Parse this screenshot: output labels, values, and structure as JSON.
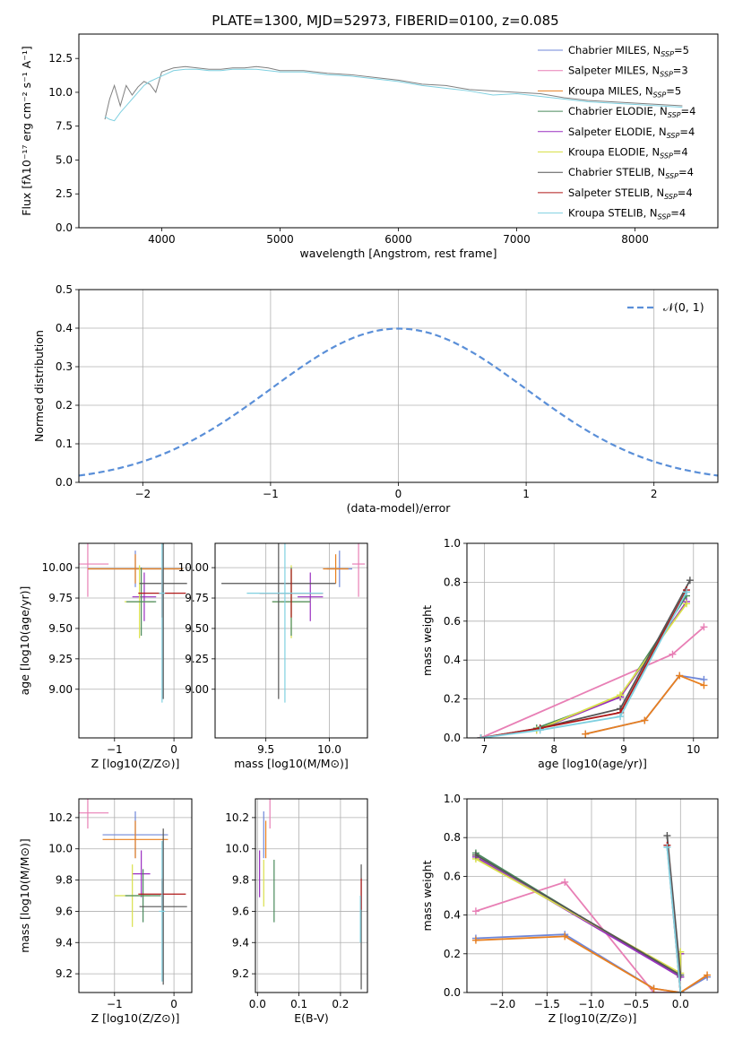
{
  "title": "PLATE=1300, MJD=52973, FIBERID=0100, z=0.085",
  "colors": {
    "Chabrier MILES": "#6f87d8",
    "Salpeter MILES": "#e87fb5",
    "Kroupa MILES": "#e87f1f",
    "Chabrier ELODIE": "#4a8a5c",
    "Salpeter ELODIE": "#9a2fc0",
    "Kroupa ELODIE": "#d8e04a",
    "Chabrier STELIB": "#555555",
    "Salpeter STELIB": "#b01818",
    "Kroupa STELIB": "#7fd0e0"
  },
  "chart_data": [
    {
      "id": "spectrum",
      "type": "line",
      "xlabel": "wavelength [Angstrom, rest frame]",
      "ylabel": "Flux [fλ10⁻¹⁷ erg cm⁻² s⁻¹ A⁻¹]",
      "xlim": [
        3300,
        8700
      ],
      "ylim": [
        0,
        14.3
      ],
      "xticks": [
        4000,
        5000,
        6000,
        7000,
        8000
      ],
      "yticks": [
        0.0,
        2.5,
        5.0,
        7.5,
        10.0,
        12.5
      ],
      "grid": false,
      "legend_position": "right",
      "legend": [
        {
          "name": "Chabrier MILES",
          "label": "Chabrier MILES, N",
          "sub": "SSP",
          "val": "=5"
        },
        {
          "name": "Salpeter MILES",
          "label": "Salpeter MILES, N",
          "sub": "SSP",
          "val": "=3"
        },
        {
          "name": "Kroupa MILES",
          "label": "Kroupa MILES, N",
          "sub": "SSP",
          "val": "=5"
        },
        {
          "name": "Chabrier ELODIE",
          "label": "Chabrier ELODIE, N",
          "sub": "SSP",
          "val": "=4"
        },
        {
          "name": "Salpeter ELODIE",
          "label": "Salpeter ELODIE, N",
          "sub": "SSP",
          "val": "=4"
        },
        {
          "name": "Kroupa ELODIE",
          "label": "Kroupa ELODIE, N",
          "sub": "SSP",
          "val": "=4"
        },
        {
          "name": "Chabrier STELIB",
          "label": "Chabrier STELIB, N",
          "sub": "SSP",
          "val": "=4"
        },
        {
          "name": "Salpeter STELIB",
          "label": "Salpeter STELIB, N",
          "sub": "SSP",
          "val": "=4"
        },
        {
          "name": "Kroupa STELIB",
          "label": "Kroupa STELIB, N",
          "sub": "SSP",
          "val": "=4"
        }
      ],
      "series": [
        {
          "name": "data",
          "color": "#808080",
          "x": [
            3520,
            3560,
            3600,
            3650,
            3700,
            3750,
            3800,
            3850,
            3900,
            3950,
            4000,
            4100,
            4200,
            4300,
            4400,
            4500,
            4600,
            4700,
            4800,
            4900,
            5000,
            5200,
            5400,
            5600,
            5800,
            6000,
            6200,
            6400,
            6600,
            6800,
            7000,
            7200,
            7400,
            7600,
            7800,
            8000,
            8200,
            8400
          ],
          "y": [
            8.0,
            9.5,
            10.5,
            9.0,
            10.5,
            9.8,
            10.4,
            10.8,
            10.6,
            10.0,
            11.5,
            11.8,
            11.9,
            11.8,
            11.7,
            11.7,
            11.8,
            11.8,
            11.9,
            11.8,
            11.6,
            11.6,
            11.4,
            11.3,
            11.1,
            10.9,
            10.6,
            10.5,
            10.2,
            10.1,
            10.0,
            9.9,
            9.6,
            9.4,
            9.3,
            9.2,
            9.1,
            9.0
          ]
        },
        {
          "name": "model",
          "color": "#7fd0e0",
          "x": [
            3520,
            3560,
            3600,
            3650,
            3700,
            3750,
            3800,
            3850,
            3900,
            3950,
            4000,
            4100,
            4200,
            4300,
            4400,
            4500,
            4600,
            4700,
            4800,
            4900,
            5000,
            5200,
            5400,
            5600,
            5800,
            6000,
            6200,
            6400,
            6600,
            6800,
            7000,
            7200,
            7400,
            7600,
            7800,
            8000,
            8200,
            8400
          ],
          "y": [
            8.2,
            8.0,
            7.9,
            8.5,
            9.0,
            9.5,
            10.0,
            10.5,
            10.8,
            11.0,
            11.2,
            11.6,
            11.7,
            11.7,
            11.6,
            11.6,
            11.7,
            11.7,
            11.7,
            11.6,
            11.5,
            11.5,
            11.3,
            11.2,
            11.0,
            10.8,
            10.5,
            10.3,
            10.1,
            9.8,
            9.9,
            9.7,
            9.5,
            9.3,
            9.2,
            9.1,
            9.0,
            8.9
          ]
        }
      ]
    },
    {
      "id": "residuals",
      "type": "line",
      "xlabel": "(data-model)/error",
      "ylabel": "Normed distribution",
      "xlim": [
        -2.5,
        2.5
      ],
      "ylim": [
        0,
        0.5
      ],
      "xticks": [
        -2,
        -1,
        0,
        1,
        2
      ],
      "yticks": [
        0.0,
        0.1,
        0.2,
        0.3,
        0.4,
        0.5
      ],
      "grid": true,
      "legend": [
        {
          "name": "𝒩(0, 1)",
          "color": "#5a8fd8"
        }
      ],
      "series": [
        {
          "name": "𝒩(0, 1)",
          "mu": 0,
          "sigma": 1
        }
      ]
    },
    {
      "id": "age_vs_Z",
      "type": "scatter",
      "xlabel": "Z [log10(Z/Z⊙)]",
      "ylabel": "age  [log10(age/yr)]",
      "xlim": [
        -1.6,
        0.3
      ],
      "ylim": [
        8.6,
        10.2
      ],
      "xticks": [
        -1,
        0
      ],
      "yticks": [
        9.0,
        9.25,
        9.5,
        9.75,
        10.0
      ],
      "grid": true,
      "points": [
        {
          "name": "Salpeter MILES",
          "x": -1.45,
          "y": 10.03,
          "xerr": 0.35,
          "yerr": 0.27
        },
        {
          "name": "Chabrier MILES",
          "x": -0.65,
          "y": 9.99,
          "xerr": 0.8,
          "yerr": 0.15
        },
        {
          "name": "Kroupa MILES",
          "x": -0.65,
          "y": 9.99,
          "xerr": 0.8,
          "yerr": 0.12
        },
        {
          "name": "Salpeter ELODIE",
          "x": -0.5,
          "y": 9.76,
          "xerr": 0.2,
          "yerr": 0.2
        },
        {
          "name": "Kroupa ELODIE",
          "x": -0.58,
          "y": 9.72,
          "xerr": 0.25,
          "yerr": 0.3
        },
        {
          "name": "Chabrier ELODIE",
          "x": -0.55,
          "y": 9.72,
          "xerr": 0.25,
          "yerr": 0.28
        },
        {
          "name": "Chabrier STELIB",
          "x": -0.18,
          "y": 9.87,
          "xerr": 0.4,
          "yerr": 0.95
        },
        {
          "name": "Salpeter STELIB",
          "x": -0.2,
          "y": 9.79,
          "xerr": 0.4,
          "yerr": 0.2
        },
        {
          "name": "Kroupa STELIB",
          "x": -0.2,
          "y": 9.79,
          "xerr": 0.05,
          "yerr": 0.9
        }
      ]
    },
    {
      "id": "age_vs_mass",
      "type": "scatter",
      "xlabel": "mass [log10(M/M⊙)]",
      "ylabel": "",
      "xlim": [
        9.1,
        10.3
      ],
      "ylim": [
        8.6,
        10.2
      ],
      "xticks": [
        9.5,
        10.0
      ],
      "yticks": [
        9.0,
        9.25,
        9.5,
        9.75,
        10.0
      ],
      "grid": true,
      "points": [
        {
          "name": "Salpeter MILES",
          "x": 10.23,
          "y": 10.03,
          "xerr": 0.05,
          "yerr": 0.27
        },
        {
          "name": "Chabrier MILES",
          "x": 10.08,
          "y": 9.99,
          "xerr": 0.1,
          "yerr": 0.15
        },
        {
          "name": "Kroupa MILES",
          "x": 10.05,
          "y": 9.99,
          "xerr": 0.1,
          "yerr": 0.12
        },
        {
          "name": "Salpeter ELODIE",
          "x": 9.85,
          "y": 9.76,
          "xerr": 0.1,
          "yerr": 0.2
        },
        {
          "name": "Kroupa ELODIE",
          "x": 9.7,
          "y": 9.72,
          "xerr": 0.15,
          "yerr": 0.3
        },
        {
          "name": "Chabrier ELODIE",
          "x": 9.7,
          "y": 9.72,
          "xerr": 0.15,
          "yerr": 0.28
        },
        {
          "name": "Chabrier STELIB",
          "x": 9.6,
          "y": 9.87,
          "xerr": 0.45,
          "yerr": 0.95
        },
        {
          "name": "Salpeter STELIB",
          "x": 9.7,
          "y": 9.79,
          "xerr": 0.25,
          "yerr": 0.2
        },
        {
          "name": "Kroupa STELIB",
          "x": 9.65,
          "y": 9.79,
          "xerr": 0.3,
          "yerr": 0.9
        }
      ]
    },
    {
      "id": "massweight_vs_age",
      "type": "line",
      "xlabel": "age  [log10(age/yr)]",
      "ylabel": "mass weight",
      "xlim": [
        6.75,
        10.35
      ],
      "ylim": [
        0,
        1.0
      ],
      "xticks": [
        7,
        8,
        9,
        10
      ],
      "yticks": [
        0.0,
        0.2,
        0.4,
        0.6,
        0.8,
        1.0
      ],
      "grid": true,
      "series": [
        {
          "name": "Salpeter MILES",
          "x": [
            6.95,
            9.7,
            10.15
          ],
          "y": [
            0.0,
            0.43,
            0.57
          ]
        },
        {
          "name": "Chabrier MILES",
          "x": [
            8.45,
            9.3,
            9.8,
            10.15
          ],
          "y": [
            0.02,
            0.09,
            0.32,
            0.3
          ]
        },
        {
          "name": "Kroupa MILES",
          "x": [
            8.45,
            9.3,
            9.8,
            10.15
          ],
          "y": [
            0.02,
            0.09,
            0.32,
            0.27
          ]
        },
        {
          "name": "Chabrier ELODIE",
          "x": [
            7.75,
            8.95,
            9.9
          ],
          "y": [
            0.05,
            0.21,
            0.73
          ]
        },
        {
          "name": "Salpeter ELODIE",
          "x": [
            7.75,
            8.95,
            9.9
          ],
          "y": [
            0.04,
            0.21,
            0.7
          ]
        },
        {
          "name": "Kroupa ELODIE",
          "x": [
            7.75,
            8.95,
            9.9
          ],
          "y": [
            0.04,
            0.22,
            0.69
          ]
        },
        {
          "name": "Chabrier STELIB",
          "x": [
            6.95,
            7.8,
            8.95,
            9.95
          ],
          "y": [
            0.0,
            0.05,
            0.15,
            0.81
          ]
        },
        {
          "name": "Salpeter STELIB",
          "x": [
            6.95,
            7.8,
            8.95,
            9.9
          ],
          "y": [
            0.0,
            0.05,
            0.13,
            0.76
          ]
        },
        {
          "name": "Kroupa STELIB",
          "x": [
            6.95,
            7.8,
            8.95,
            9.9
          ],
          "y": [
            0.0,
            0.04,
            0.11,
            0.75
          ]
        }
      ]
    },
    {
      "id": "mass_vs_Z",
      "type": "scatter",
      "xlabel": "Z [log10(Z/Z⊙)]",
      "ylabel": "mass [log10(M/M⊙)]",
      "xlim": [
        -1.6,
        0.3
      ],
      "ylim": [
        9.08,
        10.32
      ],
      "xticks": [
        -1,
        0
      ],
      "yticks": [
        9.2,
        9.4,
        9.6,
        9.8,
        10.0,
        10.2
      ],
      "grid": true,
      "points": [
        {
          "name": "Salpeter MILES",
          "x": -1.45,
          "y": 10.23,
          "xerr": 0.35,
          "yerr": 0.1
        },
        {
          "name": "Chabrier MILES",
          "x": -0.65,
          "y": 10.09,
          "xerr": 0.55,
          "yerr": 0.15
        },
        {
          "name": "Kroupa MILES",
          "x": -0.65,
          "y": 10.06,
          "xerr": 0.55,
          "yerr": 0.12
        },
        {
          "name": "Salpeter ELODIE",
          "x": -0.55,
          "y": 9.84,
          "xerr": 0.15,
          "yerr": 0.15
        },
        {
          "name": "Kroupa ELODIE",
          "x": -0.7,
          "y": 9.7,
          "xerr": 0.3,
          "yerr": 0.2
        },
        {
          "name": "Chabrier ELODIE",
          "x": -0.52,
          "y": 9.7,
          "xerr": 0.3,
          "yerr": 0.17
        },
        {
          "name": "Chabrier STELIB",
          "x": -0.18,
          "y": 9.63,
          "xerr": 0.4,
          "yerr": 0.5
        },
        {
          "name": "Salpeter STELIB",
          "x": -0.2,
          "y": 9.71,
          "xerr": 0.4,
          "yerr": 0.1
        },
        {
          "name": "Kroupa STELIB",
          "x": -0.2,
          "y": 9.6,
          "xerr": 0.05,
          "yerr": 0.45
        }
      ]
    },
    {
      "id": "mass_vs_ebv",
      "type": "scatter",
      "xlabel": "E(B-V)",
      "ylabel": "",
      "xlim": [
        -0.005,
        0.265
      ],
      "ylim": [
        9.08,
        10.32
      ],
      "xticks": [
        0.0,
        0.1,
        0.2
      ],
      "yticks": [
        9.2,
        9.4,
        9.6,
        9.8,
        10.0,
        10.2
      ],
      "grid": true,
      "points": [
        {
          "name": "Salpeter MILES",
          "x": 0.03,
          "y": 10.23,
          "xerr": 0,
          "yerr": 0.1
        },
        {
          "name": "Chabrier MILES",
          "x": 0.015,
          "y": 10.09,
          "xerr": 0,
          "yerr": 0.15
        },
        {
          "name": "Kroupa MILES",
          "x": 0.02,
          "y": 10.06,
          "xerr": 0,
          "yerr": 0.12
        },
        {
          "name": "Salpeter ELODIE",
          "x": 0.005,
          "y": 9.84,
          "xerr": 0,
          "yerr": 0.15
        },
        {
          "name": "Kroupa ELODIE",
          "x": 0.015,
          "y": 9.78,
          "xerr": 0,
          "yerr": 0.15
        },
        {
          "name": "Chabrier ELODIE",
          "x": 0.04,
          "y": 9.73,
          "xerr": 0,
          "yerr": 0.2
        },
        {
          "name": "Chabrier STELIB",
          "x": 0.25,
          "y": 9.5,
          "xerr": 0,
          "yerr": 0.4
        },
        {
          "name": "Salpeter STELIB",
          "x": 0.25,
          "y": 9.71,
          "xerr": 0,
          "yerr": 0.1
        },
        {
          "name": "Kroupa STELIB",
          "x": 0.248,
          "y": 9.55,
          "xerr": 0,
          "yerr": 0.15
        }
      ]
    },
    {
      "id": "massweight_vs_Z",
      "type": "line",
      "xlabel": "Z [log10(Z/Z⊙)]",
      "ylabel": "mass weight",
      "xlim": [
        -2.4,
        0.42
      ],
      "ylim": [
        0,
        1.0
      ],
      "xticks": [
        -2.0,
        -1.5,
        -1.0,
        -0.5,
        0.0
      ],
      "yticks": [
        0.0,
        0.2,
        0.4,
        0.6,
        0.8,
        1.0
      ],
      "grid": true,
      "series": [
        {
          "name": "Salpeter MILES",
          "x": [
            -2.3,
            -1.3,
            -0.3,
            0.0
          ],
          "y": [
            0.42,
            0.57,
            0.0,
            0.0
          ]
        },
        {
          "name": "Chabrier MILES",
          "x": [
            -2.3,
            -1.3,
            -0.3,
            0.0,
            0.3
          ],
          "y": [
            0.28,
            0.3,
            0.02,
            0.0,
            0.08
          ]
        },
        {
          "name": "Kroupa MILES",
          "x": [
            -2.3,
            -1.3,
            -0.3,
            0.0,
            0.3
          ],
          "y": [
            0.27,
            0.29,
            0.02,
            0.0,
            0.09
          ]
        },
        {
          "name": "Chabrier ELODIE",
          "x": [
            -2.3,
            0.0,
            0.0
          ],
          "y": [
            0.72,
            0.08,
            0.2
          ]
        },
        {
          "name": "Salpeter ELODIE",
          "x": [
            -2.3,
            0.0,
            0.0
          ],
          "y": [
            0.7,
            0.08,
            0.2
          ]
        },
        {
          "name": "Kroupa ELODIE",
          "x": [
            -2.3,
            0.0,
            0.0
          ],
          "y": [
            0.69,
            0.1,
            0.21
          ]
        },
        {
          "name": "Chabrier STELIB",
          "x": [
            -2.3,
            0.0,
            -0.15,
            0.0
          ],
          "y": [
            0.71,
            0.09,
            0.81,
            0.0
          ]
        },
        {
          "name": "Salpeter STELIB",
          "x": [
            -0.15,
            0.0
          ],
          "y": [
            0.76,
            0.0
          ]
        },
        {
          "name": "Kroupa STELIB",
          "x": [
            -0.15,
            0.0
          ],
          "y": [
            0.75,
            0.0
          ]
        }
      ]
    }
  ]
}
